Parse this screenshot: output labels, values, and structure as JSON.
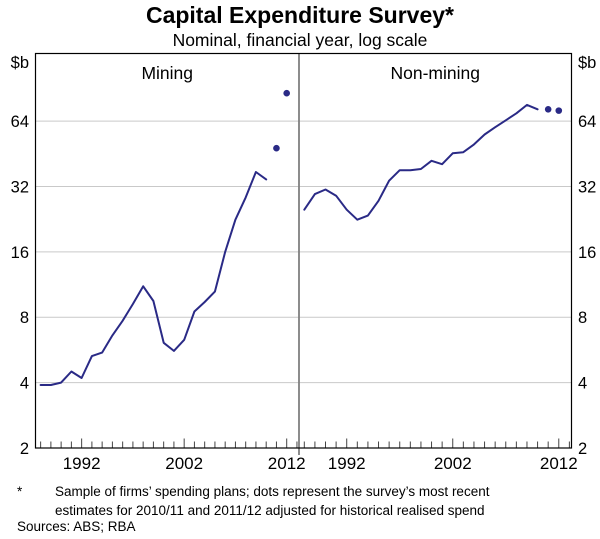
{
  "title": "Capital Expenditure Survey*",
  "subtitle": "Nominal, financial year, log scale",
  "footnote": {
    "marker": "*",
    "lines": [
      "Sample of firms’ spending plans; dots represent the survey’s most recent",
      "estimates for 2010/11 and 2011/12 adjusted for historical realised spend"
    ]
  },
  "sources": "Sources: ABS; RBA",
  "colors": {
    "line": "#2a2a86",
    "grid": "#c9c9c9",
    "divider": "#808080",
    "frame": "#000000",
    "tick": "#444444",
    "text": "#000000"
  },
  "chart_data": {
    "type": "line",
    "title": "Capital Expenditure Survey*",
    "subtitle": "Nominal, financial year, log scale",
    "y_axis": {
      "unit": "$b",
      "scale": "log",
      "ticks": [
        2,
        4,
        8,
        16,
        32,
        64
      ],
      "range": [
        2,
        131
      ],
      "gridlines": true,
      "labels_on_both_sides": true
    },
    "x_axis": {
      "range": [
        1987.5,
        2013.2
      ],
      "labeled_ticks": [
        1992,
        2002,
        2012
      ],
      "minor_tick_interval": 1
    },
    "years": [
      1988,
      1989,
      1990,
      1991,
      1992,
      1993,
      1994,
      1995,
      1996,
      1997,
      1998,
      1999,
      2000,
      2001,
      2002,
      2003,
      2004,
      2005,
      2006,
      2007,
      2008,
      2009,
      2010
    ],
    "panels": [
      {
        "label": "Mining",
        "values": [
          3.9,
          3.9,
          4.0,
          4.5,
          4.2,
          5.3,
          5.5,
          6.6,
          7.7,
          9.2,
          11.1,
          9.5,
          6.1,
          5.6,
          6.3,
          8.5,
          9.4,
          10.5,
          16,
          22.5,
          28.5,
          37.3,
          34.5
        ],
        "dots": [
          {
            "year": 2011,
            "value": 48,
            "estimate_for": "2010/11"
          },
          {
            "year": 2012,
            "value": 86,
            "estimate_for": "2011/12"
          }
        ]
      },
      {
        "label": "Non-mining",
        "values": [
          25,
          29.5,
          31,
          29,
          25,
          22.5,
          23.5,
          27.5,
          34,
          38,
          38,
          38.5,
          42,
          40.5,
          45.5,
          46,
          50,
          55.5,
          60,
          64.5,
          69.5,
          76,
          72.5
        ],
        "dots": [
          {
            "year": 2011,
            "value": 72.5,
            "estimate_for": "2010/11"
          },
          {
            "year": 2012,
            "value": 71.5,
            "estimate_for": "2011/12"
          }
        ]
      }
    ]
  }
}
